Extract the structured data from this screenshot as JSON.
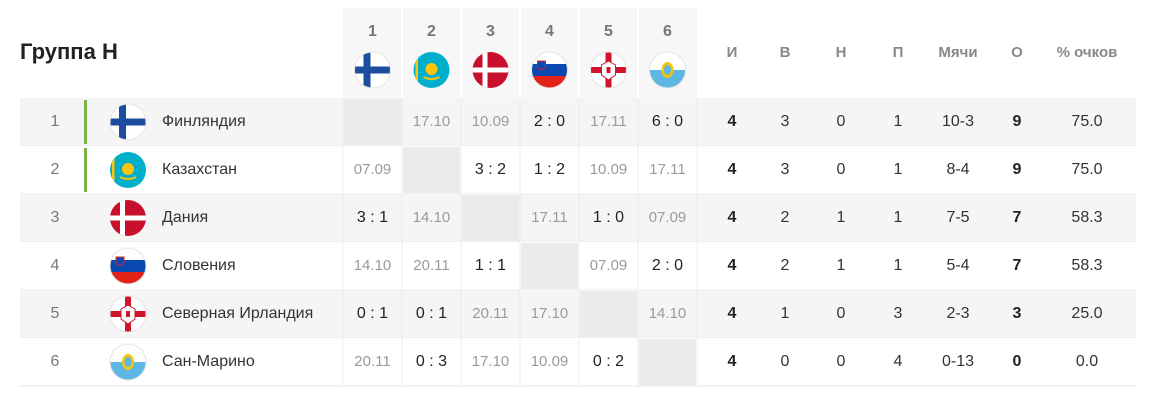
{
  "header": {
    "title": "Группа H",
    "opponents": [
      "1",
      "2",
      "3",
      "4",
      "5",
      "6"
    ],
    "columns": [
      "И",
      "В",
      "Н",
      "П",
      "Мячи",
      "О",
      "% очков"
    ]
  },
  "rows": [
    {
      "position": "1",
      "team": "Финляндия",
      "results": [
        null,
        "17.10",
        "10.09",
        "2 : 0",
        "17.11",
        "6 : 0"
      ],
      "stats": [
        "4",
        "3",
        "0",
        "1",
        "10-3",
        "9",
        "75.0"
      ]
    },
    {
      "position": "2",
      "team": "Казахстан",
      "results": [
        "07.09",
        null,
        "3 : 2",
        "1 : 2",
        "10.09",
        "17.11"
      ],
      "stats": [
        "4",
        "3",
        "0",
        "1",
        "8-4",
        "9",
        "75.0"
      ]
    },
    {
      "position": "3",
      "team": "Дания",
      "results": [
        "3 : 1",
        "14.10",
        null,
        "17.11",
        "1 : 0",
        "07.09"
      ],
      "stats": [
        "4",
        "2",
        "1",
        "1",
        "7-5",
        "7",
        "58.3"
      ]
    },
    {
      "position": "4",
      "team": "Словения",
      "results": [
        "14.10",
        "20.11",
        "1 : 1",
        null,
        "07.09",
        "2 : 0"
      ],
      "stats": [
        "4",
        "2",
        "1",
        "1",
        "5-4",
        "7",
        "58.3"
      ]
    },
    {
      "position": "5",
      "team": "Северная Ирландия",
      "results": [
        "0 : 1",
        "0 : 1",
        "20.11",
        "17.10",
        null,
        "14.10"
      ],
      "stats": [
        "4",
        "1",
        "0",
        "3",
        "2-3",
        "3",
        "25.0"
      ]
    },
    {
      "position": "6",
      "team": "Сан-Марино",
      "results": [
        "20.11",
        "0 : 3",
        "17.10",
        "10.09",
        "0 : 2",
        null
      ],
      "stats": [
        "4",
        "0",
        "0",
        "4",
        "0-13",
        "0",
        "0.0"
      ]
    }
  ]
}
